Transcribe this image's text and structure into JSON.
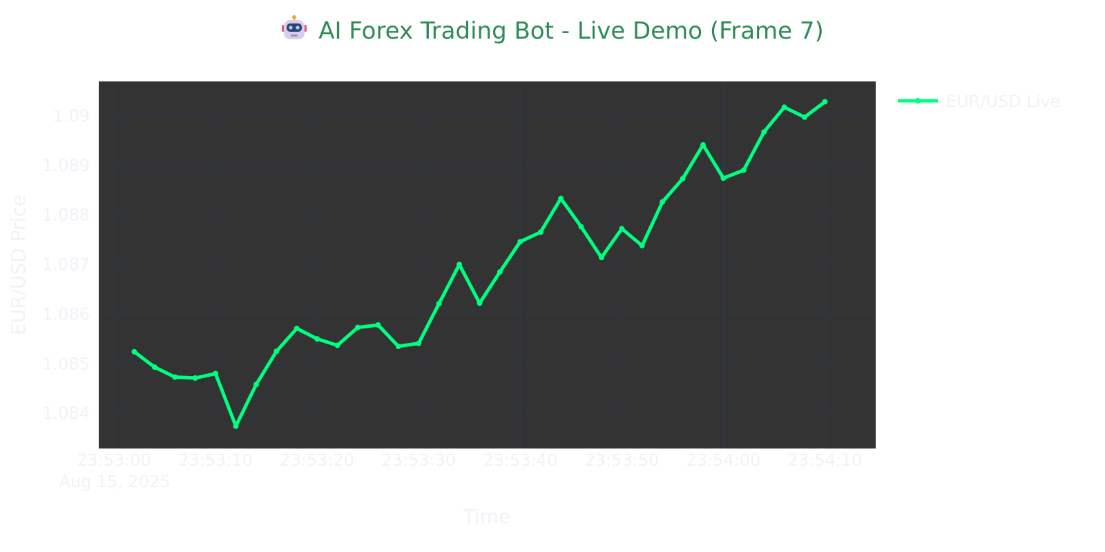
{
  "chart_data": {
    "type": "line",
    "title": "AI Forex Trading Bot - Live Demo (Frame 7)",
    "title_icon": "robot-icon",
    "xlabel": "Time",
    "ylabel": "EUR/USD Price",
    "date_label": "Aug 15, 2025",
    "x_tick_labels": [
      "23:53:00",
      "23:53:10",
      "23:53:20",
      "23:53:30",
      "23:53:40",
      "23:53:50",
      "23:54:00",
      "23:54:10"
    ],
    "y_tick_labels": [
      "1.084",
      "1.085",
      "1.086",
      "1.087",
      "1.088",
      "1.089",
      "1.09"
    ],
    "y_ticks": [
      1.084,
      1.085,
      1.086,
      1.087,
      1.088,
      1.089,
      1.09
    ],
    "xlim": [
      "23:52:58.5",
      "23:54:15"
    ],
    "ylim": [
      1.08328,
      1.09068
    ],
    "grid": true,
    "legend_position": "top-right",
    "plot_background": "#333333",
    "line_color": "#00ff7f",
    "title_color": "#2e8b57",
    "series": [
      {
        "name": "EUR/USD Live",
        "x": [
          "23:53:02",
          "23:53:04",
          "23:53:06",
          "23:53:08",
          "23:53:10",
          "23:53:12",
          "23:53:14",
          "23:53:16",
          "23:53:18",
          "23:53:20",
          "23:53:22",
          "23:53:24",
          "23:53:26",
          "23:53:28",
          "23:53:30",
          "23:53:32",
          "23:53:34",
          "23:53:36",
          "23:53:38",
          "23:53:40",
          "23:53:42",
          "23:53:44",
          "23:53:46",
          "23:53:48",
          "23:53:50",
          "23:53:52",
          "23:53:54",
          "23:53:56",
          "23:53:58",
          "23:54:00",
          "23:54:02",
          "23:54:04",
          "23:54:06",
          "23:54:08",
          "23:54:10"
        ],
        "values": [
          1.08523,
          1.08492,
          1.08472,
          1.0847,
          1.08479,
          1.08373,
          1.08457,
          1.08524,
          1.0857,
          1.08549,
          1.08536,
          1.08572,
          1.08577,
          1.08534,
          1.0854,
          1.0862,
          1.08699,
          1.08621,
          1.08684,
          1.08745,
          1.08764,
          1.08832,
          1.08775,
          1.08713,
          1.08771,
          1.08737,
          1.08825,
          1.08872,
          1.0894,
          1.08873,
          1.08889,
          1.08966,
          1.09016,
          1.08996,
          1.09027
        ]
      }
    ]
  }
}
